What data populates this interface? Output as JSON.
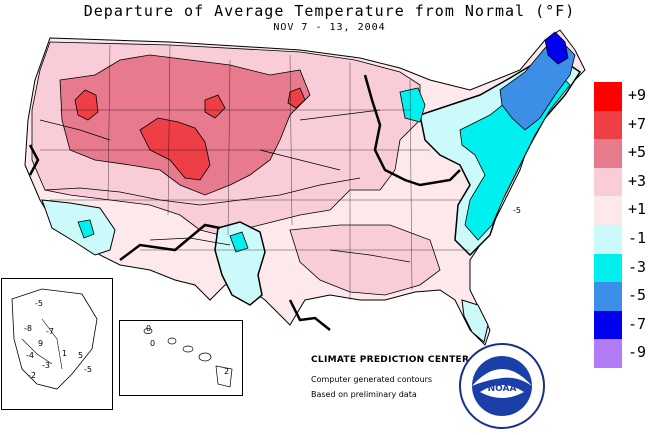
{
  "title": "Departure of Average Temperature from Normal (°F)",
  "subtitle": "NOV 7 - 13, 2004",
  "legend": {
    "entries": [
      {
        "label": "+9",
        "color": "#ff0000"
      },
      {
        "label": "+7",
        "color": "#ee3f46"
      },
      {
        "label": "+5",
        "color": "#e87a8d"
      },
      {
        "label": "+3",
        "color": "#f9cdd7"
      },
      {
        "label": "+1",
        "color": "#fde9ec"
      },
      {
        "label": "-1",
        "color": "#ccf9f9"
      },
      {
        "label": "-3",
        "color": "#00f0f0"
      },
      {
        "label": "-5",
        "color": "#3c8ee6"
      },
      {
        "label": "-7",
        "color": "#0000ee"
      },
      {
        "label": "-9",
        "color": "#b47bf7"
      }
    ]
  },
  "credits": {
    "center": "CLIMATE PREDICTION CENTER, NOAA",
    "line2": "Computer generated contours",
    "line3": "Based on preliminary data"
  },
  "logo_text": "NOAA",
  "alaska_labels": [
    "-5",
    "-8",
    "-7",
    "9",
    "-4",
    "-3",
    "-2",
    "1",
    "5",
    "-5"
  ],
  "hawaii_labels": [
    "0",
    "0",
    "2"
  ],
  "map_labels": {
    "ne_ocean": "-5"
  }
}
